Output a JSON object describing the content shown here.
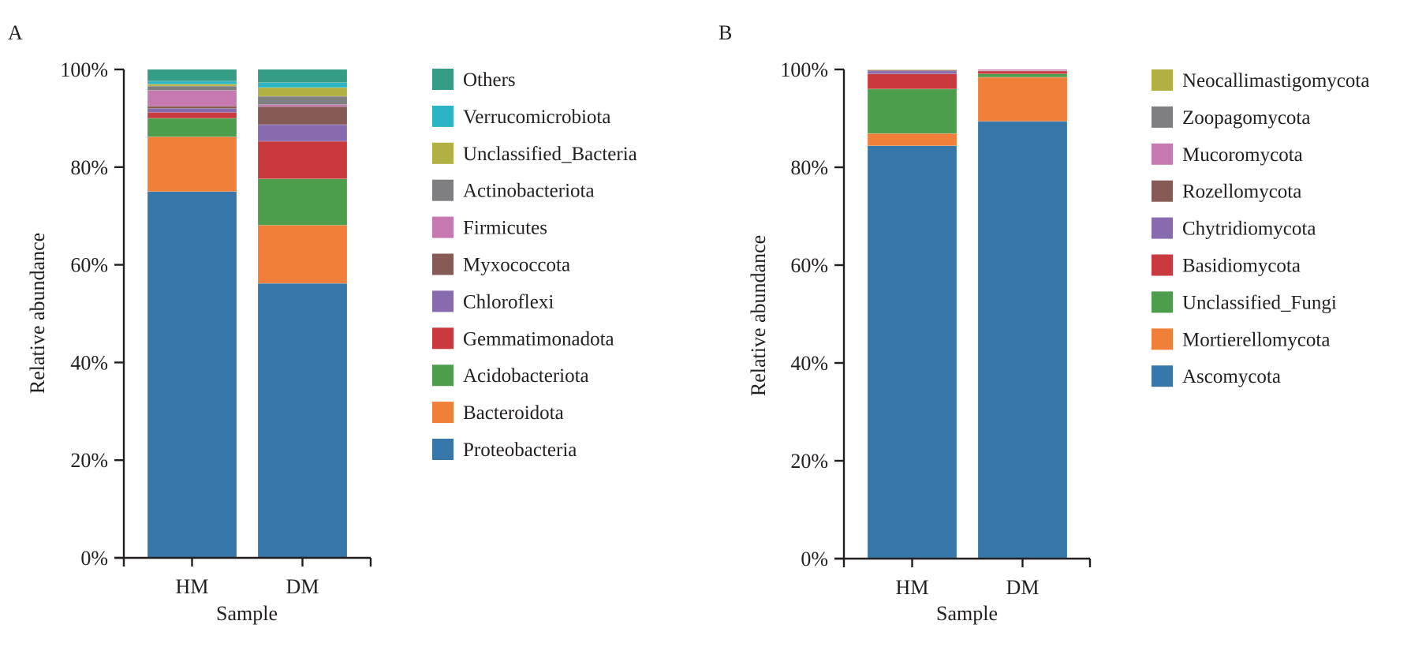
{
  "chart_data": [
    {
      "panel_label": "A",
      "type": "bar",
      "stacked": true,
      "categories": [
        "HM",
        "DM"
      ],
      "xlabel": "Sample",
      "ylabel": "Relative abundance",
      "ylim": [
        0,
        100
      ],
      "yticks": [
        "0%",
        "20%",
        "40%",
        "60%",
        "80%",
        "100%"
      ],
      "legend_position": "right",
      "series": [
        {
          "name": "Proteobacteria",
          "color": "#3676a9",
          "values": [
            75.0,
            56.2
          ]
        },
        {
          "name": "Bacteroidota",
          "color": "#f07f3a",
          "values": [
            11.2,
            11.9
          ]
        },
        {
          "name": "Acidobacteriota",
          "color": "#4d9e4c",
          "values": [
            3.8,
            9.5
          ]
        },
        {
          "name": "Gemmatimonadota",
          "color": "#c83a3d",
          "values": [
            1.2,
            7.7
          ]
        },
        {
          "name": "Chloroflexi",
          "color": "#876bae",
          "values": [
            0.8,
            3.4
          ]
        },
        {
          "name": "Myxococcota",
          "color": "#865a55",
          "values": [
            0.5,
            3.7
          ]
        },
        {
          "name": "Firmicutes",
          "color": "#c878b0",
          "values": [
            3.2,
            0.4
          ]
        },
        {
          "name": "Actinobacteriota",
          "color": "#7f7f82",
          "values": [
            0.9,
            1.7
          ]
        },
        {
          "name": "Unclassified_Bacteria",
          "color": "#b1b043",
          "values": [
            0.4,
            1.8
          ]
        },
        {
          "name": "Verrucomicrobiota",
          "color": "#2bb5c4",
          "values": [
            0.6,
            1.0
          ]
        },
        {
          "name": "Others",
          "color": "#359d86",
          "values": [
            2.4,
            2.7
          ]
        }
      ],
      "legend_order": [
        "Others",
        "Verrucomicrobiota",
        "Unclassified_Bacteria",
        "Actinobacteriota",
        "Firmicutes",
        "Myxococcota",
        "Chloroflexi",
        "Gemmatimonadota",
        "Acidobacteriota",
        "Bacteroidota",
        "Proteobacteria"
      ]
    },
    {
      "panel_label": "B",
      "type": "bar",
      "stacked": true,
      "categories": [
        "HM",
        "DM"
      ],
      "xlabel": "Sample",
      "ylabel": "Relative abundance",
      "ylim": [
        0,
        100
      ],
      "yticks": [
        "0%",
        "20%",
        "40%",
        "60%",
        "80%",
        "100%"
      ],
      "legend_position": "right",
      "series": [
        {
          "name": "Ascomycota",
          "color": "#3676a9",
          "values": [
            84.4,
            89.4
          ]
        },
        {
          "name": "Mortierellomycota",
          "color": "#f07f3a",
          "values": [
            2.5,
            9.0
          ]
        },
        {
          "name": "Unclassified_Fungi",
          "color": "#4d9e4c",
          "values": [
            9.1,
            0.7
          ]
        },
        {
          "name": "Basidiomycota",
          "color": "#c83a3d",
          "values": [
            3.1,
            0.6
          ]
        },
        {
          "name": "Chytridiomycota",
          "color": "#876bae",
          "values": [
            0.6,
            0.05
          ]
        },
        {
          "name": "Rozellomycota",
          "color": "#865a55",
          "values": [
            0.2,
            0.05
          ]
        },
        {
          "name": "Mucoromycota",
          "color": "#c878b0",
          "values": [
            0.05,
            0.2
          ]
        },
        {
          "name": "Zoopagomycota",
          "color": "#7f7f82",
          "values": [
            0.03,
            0.0
          ]
        },
        {
          "name": "Neocallimastigomycota",
          "color": "#b1b043",
          "values": [
            0.02,
            0.0
          ]
        }
      ],
      "legend_order": [
        "Neocallimastigomycota",
        "Zoopagomycota",
        "Mucoromycota",
        "Rozellomycota",
        "Chytridiomycota",
        "Basidiomycota",
        "Unclassified_Fungi",
        "Mortierellomycota",
        "Ascomycota"
      ]
    }
  ]
}
